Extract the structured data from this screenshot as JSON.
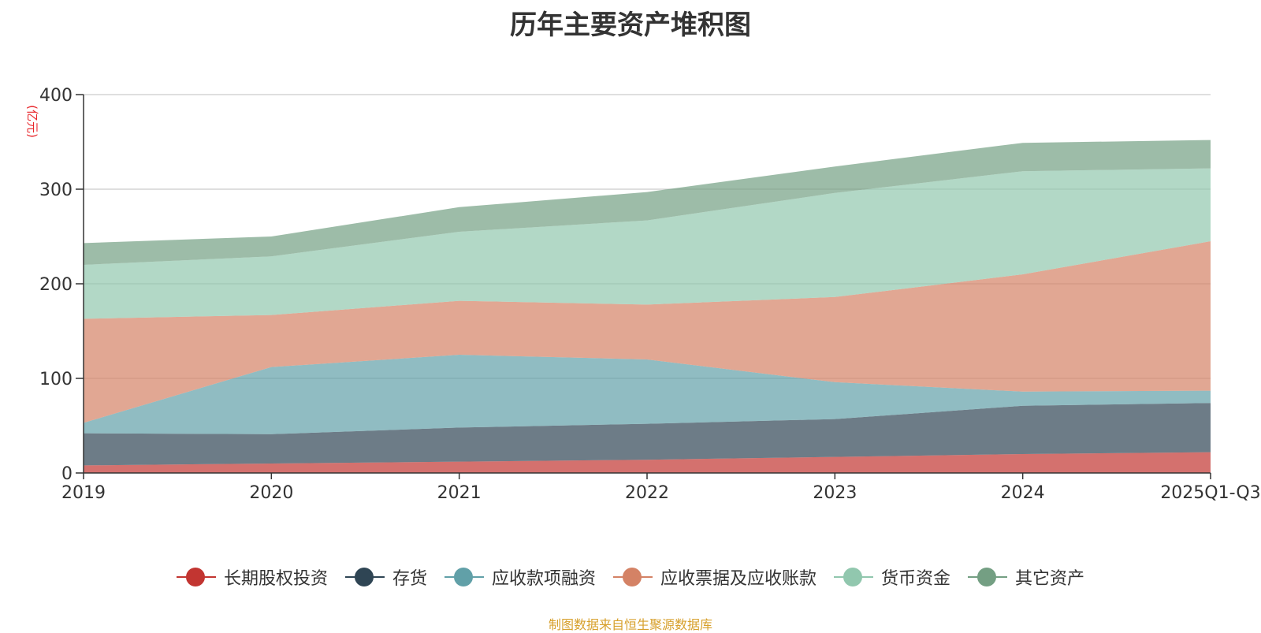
{
  "chart_data": {
    "type": "area",
    "stacked": true,
    "title": "历年主要资产堆积图",
    "ylabel": "(亿元)",
    "ylim": [
      0,
      400
    ],
    "yticks": [
      0,
      100,
      200,
      300,
      400
    ],
    "categories": [
      "2019",
      "2020",
      "2021",
      "2022",
      "2023",
      "2024",
      "2025Q1-Q3"
    ],
    "series": [
      {
        "name": "长期股权投资",
        "color": "#c23531",
        "values": [
          8,
          10,
          12,
          14,
          17,
          20,
          22
        ]
      },
      {
        "name": "存货",
        "color": "#2f4554",
        "values": [
          34,
          31,
          36,
          38,
          40,
          51,
          52
        ]
      },
      {
        "name": "应收款项融资",
        "color": "#61a0a8",
        "values": [
          11,
          71,
          77,
          68,
          39,
          15,
          13
        ]
      },
      {
        "name": "应收票据及应收账款",
        "color": "#d48265",
        "values": [
          110,
          55,
          57,
          58,
          90,
          124,
          158
        ]
      },
      {
        "name": "货币资金",
        "color": "#91c7ae",
        "values": [
          57,
          62,
          73,
          89,
          110,
          109,
          77
        ]
      },
      {
        "name": "其它资产",
        "color": "#749f83",
        "values": [
          23,
          21,
          26,
          30,
          28,
          30,
          30
        ]
      }
    ]
  },
  "footer": {
    "source": "制图数据来自恒生聚源数据库"
  }
}
